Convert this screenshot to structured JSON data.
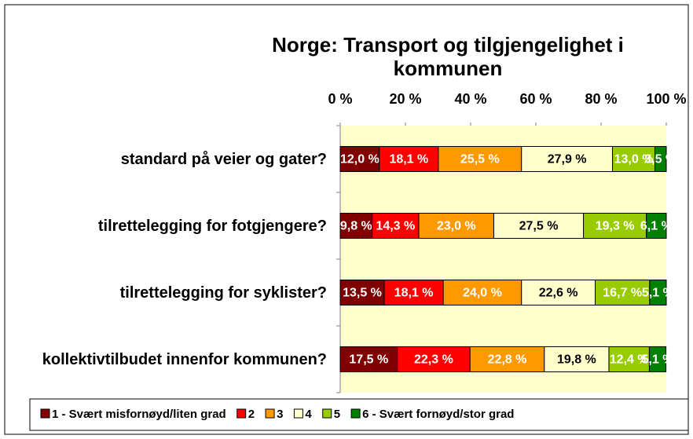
{
  "chart_data": {
    "type": "stacked_bar_horizontal",
    "title": "Norge: Transport og tilgjengelighet i kommunen",
    "categories": [
      "standard på veier og gater?",
      "tilrettelegging for fotgjengere?",
      "tilrettelegging for syklister?",
      "kollektivtilbudet innenfor kommunen?"
    ],
    "xlim": [
      0,
      100
    ],
    "xticks": [
      {
        "value": 0,
        "label": "0 %"
      },
      {
        "value": 20,
        "label": "20 %"
      },
      {
        "value": 40,
        "label": "40 %"
      },
      {
        "value": 60,
        "label": "60 %"
      },
      {
        "value": 80,
        "label": "80 %"
      },
      {
        "value": 100,
        "label": "100 %"
      }
    ],
    "legend": "bottom",
    "series": [
      {
        "name": "1 - Svært misfornøyd/liten grad",
        "color": "#800000",
        "values": [
          12.0,
          9.8,
          13.5,
          17.5
        ],
        "value_labels": [
          "12,0 %",
          "9,8 %",
          "13,5 %",
          "17,5 %"
        ]
      },
      {
        "name": "2",
        "color": "#ff0000",
        "values": [
          18.1,
          14.3,
          18.1,
          22.3
        ],
        "value_labels": [
          "18,1 %",
          "14,3 %",
          "18,1 %",
          "22,3 %"
        ]
      },
      {
        "name": "3",
        "color": "#ff9900",
        "values": [
          25.5,
          23.0,
          24.0,
          22.8
        ],
        "value_labels": [
          "25,5 %",
          "23,0 %",
          "24,0 %",
          "22,8 %"
        ]
      },
      {
        "name": "4",
        "color": "#ffffcc",
        "values": [
          27.9,
          27.5,
          22.6,
          19.8
        ],
        "value_labels": [
          "27,9 %",
          "27,5 %",
          "22,6 %",
          "19,8 %"
        ]
      },
      {
        "name": "5",
        "color": "#99cc00",
        "values": [
          13.0,
          19.3,
          16.7,
          12.4
        ],
        "value_labels": [
          "13,0 %",
          "19,3 %",
          "16,7 %",
          "12,4 %"
        ]
      },
      {
        "name": "6 - Svært fornøyd/stor grad",
        "color": "#008000",
        "values": [
          3.5,
          6.1,
          5.1,
          5.1
        ],
        "value_labels": [
          "3,5 %",
          "6,1 %",
          "5,1 %",
          "5,1 %"
        ]
      }
    ]
  }
}
